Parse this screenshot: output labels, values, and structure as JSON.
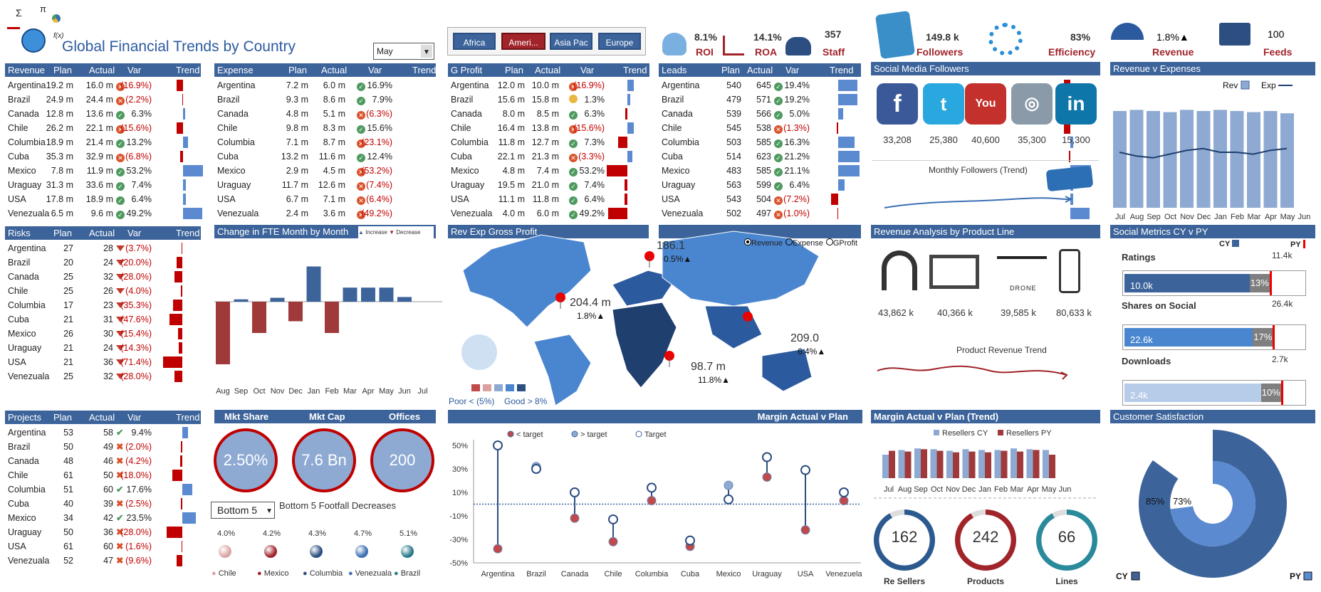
{
  "title": "Global Financial Trends by Country",
  "month_select": "May",
  "regions": [
    "Africa",
    "Ameri...",
    "Asia Pac",
    "Europe"
  ],
  "kpis": [
    {
      "value": "8.1%",
      "label": "ROI"
    },
    {
      "value": "14.1%",
      "label": "ROA"
    },
    {
      "value": "357",
      "label": "Staff"
    },
    {
      "value": "149.8 k",
      "label": "Followers"
    },
    {
      "value": "83%",
      "label": "Efficiency"
    },
    {
      "value": "1.8%▲",
      "label": "Revenue"
    },
    {
      "value": "100",
      "label": "Feeds"
    }
  ],
  "revenue": {
    "title": "Revenue",
    "cols": [
      "Plan",
      "Actual",
      "Var",
      "Trend"
    ],
    "rows": [
      [
        "Argentina",
        "19.2 m",
        "16.0 m",
        "(16.9%)",
        -16.9
      ],
      [
        "Brazil",
        "24.9 m",
        "24.4 m",
        "(2.2%)",
        -2.2
      ],
      [
        "Canada",
        "12.8 m",
        "13.6 m",
        "6.3%",
        6.3
      ],
      [
        "Chile",
        "26.2 m",
        "22.1 m",
        "(15.6%)",
        -15.6
      ],
      [
        "Columbia",
        "18.9 m",
        "21.4 m",
        "13.2%",
        13.2
      ],
      [
        "Cuba",
        "35.3 m",
        "32.9 m",
        "(6.8%)",
        -6.8
      ],
      [
        "Mexico",
        "7.8 m",
        "11.9 m",
        "53.2%",
        53.2
      ],
      [
        "Uraguay",
        "31.3 m",
        "33.6 m",
        "7.4%",
        7.4
      ],
      [
        "USA",
        "17.8 m",
        "18.9 m",
        "6.4%",
        6.4
      ],
      [
        "Venezuala",
        "6.5 m",
        "9.6 m",
        "49.2%",
        49.2
      ]
    ]
  },
  "expense": {
    "title": "Expense",
    "cols": [
      "Plan",
      "Actual",
      "Var",
      "Trend"
    ],
    "rows": [
      [
        "Argentina",
        "7.2 m",
        "6.0 m",
        "16.9%",
        16.9
      ],
      [
        "Brazil",
        "9.3 m",
        "8.6 m",
        "7.9%",
        7.9
      ],
      [
        "Canada",
        "4.8 m",
        "5.1 m",
        "(6.3%)",
        -6.3
      ],
      [
        "Chile",
        "9.8 m",
        "8.3 m",
        "15.6%",
        15.6
      ],
      [
        "Columbia",
        "7.1 m",
        "8.7 m",
        "(23.1%)",
        -23.1
      ],
      [
        "Cuba",
        "13.2 m",
        "11.6 m",
        "12.4%",
        12.4
      ],
      [
        "Mexico",
        "2.9 m",
        "4.5 m",
        "(53.2%)",
        -53.2
      ],
      [
        "Uraguay",
        "11.7 m",
        "12.6 m",
        "(7.4%)",
        -7.4
      ],
      [
        "USA",
        "6.7 m",
        "7.1 m",
        "(6.4%)",
        -6.4
      ],
      [
        "Venezuala",
        "2.4 m",
        "3.6 m",
        "(49.2%)",
        -49.2
      ]
    ]
  },
  "gprofit": {
    "title": "G Profit",
    "cols": [
      "Plan",
      "Actual",
      "Var",
      "Trend"
    ],
    "rows": [
      [
        "Argentina",
        "12.0 m",
        "10.0 m",
        "(16.9%)",
        -16.9
      ],
      [
        "Brazil",
        "15.6 m",
        "15.8 m",
        "1.3%",
        1.3
      ],
      [
        "Canada",
        "8.0 m",
        "8.5 m",
        "6.3%",
        6.3
      ],
      [
        "Chile",
        "16.4 m",
        "13.8 m",
        "(15.6%)",
        -15.6
      ],
      [
        "Columbia",
        "11.8 m",
        "12.7 m",
        "7.3%",
        7.3
      ],
      [
        "Cuba",
        "22.1 m",
        "21.3 m",
        "(3.3%)",
        -3.3
      ],
      [
        "Mexico",
        "4.8 m",
        "7.4 m",
        "53.2%",
        53.2
      ],
      [
        "Uraguay",
        "19.5 m",
        "21.0 m",
        "7.4%",
        7.4
      ],
      [
        "USA",
        "11.1 m",
        "11.8 m",
        "6.4%",
        6.4
      ],
      [
        "Venezuala",
        "4.0 m",
        "6.0 m",
        "49.2%",
        49.2
      ]
    ]
  },
  "leads": {
    "title": "Leads",
    "cols": [
      "Plan",
      "Actual",
      "Var",
      "Trend"
    ],
    "rows": [
      [
        "Argentina",
        "540",
        "645",
        "19.4%",
        19.4
      ],
      [
        "Brazil",
        "479",
        "571",
        "19.2%",
        19.2
      ],
      [
        "Canada",
        "539",
        "566",
        "5.0%",
        5.0
      ],
      [
        "Chile",
        "545",
        "538",
        "(1.3%)",
        -1.3
      ],
      [
        "Columbia",
        "503",
        "585",
        "16.3%",
        16.3
      ],
      [
        "Cuba",
        "514",
        "623",
        "21.2%",
        21.2
      ],
      [
        "Mexico",
        "483",
        "585",
        "21.1%",
        21.1
      ],
      [
        "Uraguay",
        "563",
        "599",
        "6.4%",
        6.4
      ],
      [
        "USA",
        "543",
        "504",
        "(7.2%)",
        -7.2
      ],
      [
        "Venezuala",
        "502",
        "497",
        "(1.0%)",
        -1.0
      ]
    ]
  },
  "risks": {
    "title": "Risks",
    "cols": [
      "Plan",
      "Actual",
      "Var",
      "Trend"
    ],
    "rows": [
      [
        "Argentina",
        "27",
        "28",
        "(3.7%)",
        -3.7
      ],
      [
        "Brazil",
        "20",
        "24",
        "(20.0%)",
        -20
      ],
      [
        "Canada",
        "25",
        "32",
        "(28.0%)",
        -28
      ],
      [
        "Chile",
        "25",
        "26",
        "(4.0%)",
        -4
      ],
      [
        "Columbia",
        "17",
        "23",
        "(35.3%)",
        -35.3
      ],
      [
        "Cuba",
        "21",
        "31",
        "(47.6%)",
        -47.6
      ],
      [
        "Mexico",
        "26",
        "30",
        "(15.4%)",
        -15.4
      ],
      [
        "Uraguay",
        "21",
        "24",
        "(14.3%)",
        -14.3
      ],
      [
        "USA",
        "21",
        "36",
        "(71.4%)",
        -71.4
      ],
      [
        "Venezuala",
        "25",
        "32",
        "(28.0%)",
        -28
      ]
    ]
  },
  "projects": {
    "title": "Projects",
    "cols": [
      "Plan",
      "Actual",
      "Var",
      "Trend"
    ],
    "rows": [
      [
        "Argentina",
        "53",
        "58",
        "9.4%",
        9.4
      ],
      [
        "Brazil",
        "50",
        "49",
        "(2.0%)",
        -2
      ],
      [
        "Canada",
        "48",
        "46",
        "(4.2%)",
        -4.2
      ],
      [
        "Chile",
        "61",
        "50",
        "(18.0%)",
        -18
      ],
      [
        "Columbia",
        "51",
        "60",
        "17.6%",
        17.6
      ],
      [
        "Cuba",
        "40",
        "39",
        "(2.5%)",
        -2.5
      ],
      [
        "Mexico",
        "34",
        "42",
        "23.5%",
        23.5
      ],
      [
        "Uraguay",
        "50",
        "36",
        "(28.0%)",
        -28
      ],
      [
        "USA",
        "61",
        "60",
        "(1.6%)",
        -1.6
      ],
      [
        "Venezuala",
        "52",
        "47",
        "(9.6%)",
        -9.6
      ]
    ]
  },
  "fte": {
    "title": "Change in FTE Month by Month",
    "legend": [
      "Increase",
      "Decrease"
    ],
    "months": [
      "Aug",
      "Sep",
      "Oct",
      "Nov",
      "Dec",
      "Jan",
      "Feb",
      "Mar",
      "Apr",
      "May",
      "Jun",
      "Jul"
    ],
    "values": [
      -80,
      3,
      -40,
      5,
      -25,
      45,
      -40,
      18,
      18,
      18,
      6,
      0
    ]
  },
  "map": {
    "title": "Rev Exp Gross Profit",
    "options": [
      "Revenue",
      "Expense",
      "GProfit"
    ],
    "labels": [
      {
        "v": "186.1",
        "p": "0.5%▲"
      },
      {
        "v": "204.4 m",
        "p": "1.8%▲"
      },
      {
        "v": "209.0",
        "p": "6.4%▲"
      },
      {
        "v": "98.7 m",
        "p": "11.8%▲"
      }
    ],
    "legend_poor": "Poor < (5%)",
    "legend_good": "Good > 8%"
  },
  "bubbles": {
    "titles": [
      "Mkt Share",
      "Mkt Cap",
      "Offices"
    ],
    "values": [
      "2.50%",
      "7.6 Bn",
      "200"
    ]
  },
  "footfall": {
    "select": "Bottom 5",
    "title": "Bottom 5 Footfall Decreases",
    "items": [
      {
        "name": "Chile",
        "v": "4.0%",
        "c": "#d9a5a5"
      },
      {
        "name": "Mexico",
        "v": "4.2%",
        "c": "#a0242a"
      },
      {
        "name": "Columbia",
        "v": "4.3%",
        "c": "#2c4e80"
      },
      {
        "name": "Venezuala",
        "v": "4.7%",
        "c": "#3c6fb4"
      },
      {
        "name": "Brazil",
        "v": "5.1%",
        "c": "#2a7a8c"
      }
    ]
  },
  "margin": {
    "title": "Margin Actual v Plan",
    "legend": [
      "< target",
      "> target",
      "Target"
    ],
    "yticks": [
      "50%",
      "30%",
      "10%",
      "-10%",
      "-30%",
      "-50%"
    ],
    "categories": [
      "Argentina",
      "Brazil",
      "Canada",
      "Chile",
      "Columbia",
      "Cuba",
      "Mexico",
      "Uraguay",
      "USA",
      "Venezuela"
    ],
    "actual": [
      -38,
      32,
      -12,
      -32,
      3,
      -36,
      16,
      23,
      -22,
      3
    ],
    "target": [
      50,
      30,
      10,
      -13,
      14,
      -31,
      4,
      40,
      29,
      10
    ]
  },
  "social": {
    "title": "Social Media Followers",
    "values": [
      "33,208",
      "25,380",
      "40,600",
      "35,300",
      "15,300"
    ],
    "trend_label": "Monthly Followers (Trend)"
  },
  "products": {
    "title": "Revenue Analysis by Product Line",
    "values": [
      "43,862 k",
      "40,366 k",
      "39,585 k",
      "80,633 k"
    ],
    "drone": "DRONE",
    "trend_label": "Product Revenue Trend"
  },
  "marginTrend": {
    "title": "Margin Actual v Plan (Trend)",
    "legend": [
      "Resellers CY",
      "Resellers PY"
    ],
    "months": [
      "Jul",
      "Aug",
      "Sep",
      "Oct",
      "Nov",
      "Dec",
      "Jan",
      "Feb",
      "Mar",
      "Apr",
      "May",
      "Jun"
    ],
    "cy": [
      30,
      36,
      38,
      37,
      35,
      37,
      36,
      36,
      38,
      37,
      36,
      0
    ],
    "py": [
      35,
      34,
      37,
      35,
      33,
      34,
      33,
      35,
      34,
      36,
      30,
      0
    ]
  },
  "donuts": [
    {
      "v": "162",
      "label": "Re Sellers",
      "c": "#2c5a8f"
    },
    {
      "v": "242",
      "label": "Products",
      "c": "#a0242a"
    },
    {
      "v": "66",
      "label": "Lines",
      "c": "#2a8a9c"
    }
  ],
  "revexp": {
    "title": "Revenue v Expenses",
    "legend": [
      "Rev",
      "Exp"
    ],
    "months": [
      "Jul",
      "Aug",
      "Sep",
      "Oct",
      "Nov",
      "Dec",
      "Jan",
      "Feb",
      "Mar",
      "Apr",
      "May",
      "Jun"
    ],
    "rev": [
      85,
      86,
      85,
      84,
      86,
      85,
      86,
      85,
      84,
      85,
      83,
      0
    ],
    "exp": [
      30,
      28,
      27,
      29,
      31,
      32,
      30,
      30,
      29,
      31,
      32,
      0
    ]
  },
  "socialMetrics": {
    "title": "Social Metrics CY v PY",
    "cy": "CY",
    "py": "PY",
    "items": [
      {
        "name": "Ratings",
        "target": "11.4k",
        "value": "10.0k",
        "pct": "13%",
        "fill": 0.78,
        "c": "#3c649b"
      },
      {
        "name": "Shares on Social",
        "target": "26.4k",
        "value": "22.6k",
        "pct": "17%",
        "fill": 0.8,
        "c": "#4a86cf"
      },
      {
        "name": "Downloads",
        "target": "2.7k",
        "value": "2.4k",
        "pct": "10%",
        "fill": 0.85,
        "c": "#b7cce8"
      }
    ]
  },
  "csat": {
    "title": "Customer Satisfaction",
    "cy": "85%",
    "py": "73%",
    "cyLabel": "CY",
    "pyLabel": "PY"
  }
}
